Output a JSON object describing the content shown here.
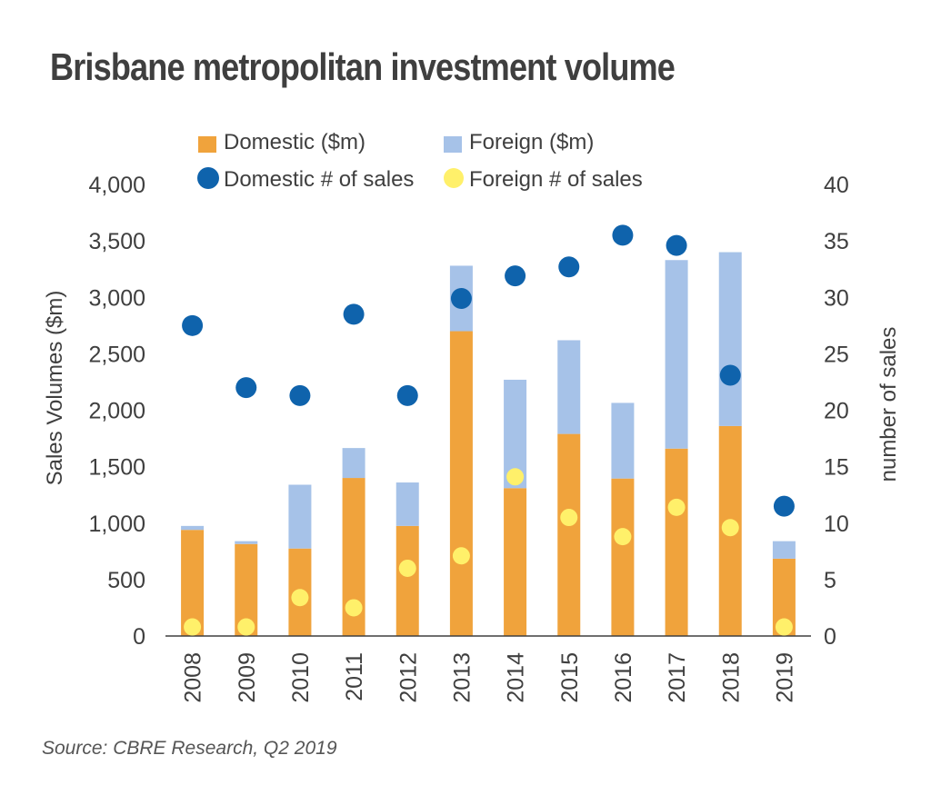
{
  "chart_data": {
    "type": "bar",
    "title": "Brisbane metropolitan investment volume",
    "source": "Source: CBRE Research, Q2 2019",
    "categories": [
      "2008",
      "2009",
      "2010",
      "2011",
      "2012",
      "2013",
      "2014",
      "2015",
      "2016",
      "2017",
      "2018",
      "2019"
    ],
    "series": [
      {
        "name": "Domestic ($m)",
        "kind": "bar",
        "axis": "left",
        "color": "#F0A33C",
        "values": [
          940,
          815,
          775,
          1400,
          975,
          2700,
          1310,
          1790,
          1395,
          1660,
          1860,
          685
        ]
      },
      {
        "name": "Foreign ($m)",
        "kind": "bar",
        "axis": "left",
        "color": "#A6C2E8",
        "values": [
          35,
          25,
          565,
          265,
          385,
          580,
          960,
          830,
          670,
          1670,
          1540,
          155
        ]
      },
      {
        "name": "Domestic # of sales",
        "kind": "scatter",
        "axis": "right",
        "color": "#0F63AC",
        "values": [
          27.5,
          22,
          21.3,
          28.5,
          21.3,
          29.9,
          31.9,
          32.7,
          35.5,
          34.6,
          23.1,
          11.5
        ]
      },
      {
        "name": "Foreign # of sales",
        "kind": "scatter",
        "axis": "right",
        "color": "#FFF06A",
        "values": [
          0.8,
          0.8,
          3.4,
          2.5,
          6,
          7.1,
          14.1,
          10.5,
          8.8,
          11.4,
          9.6,
          0.8
        ]
      }
    ],
    "ylabel": "Sales Volumes ($m)",
    "ylabel_right": "number of sales",
    "ylim": [
      0,
      4000
    ],
    "ylim_right": [
      0,
      40
    ],
    "yticks": [
      "0",
      "500",
      "1,000",
      "1,500",
      "2,000",
      "2,500",
      "3,000",
      "3,500",
      "4,000"
    ],
    "yticks_right": [
      "0",
      "5",
      "10",
      "15",
      "20",
      "25",
      "30",
      "35",
      "40"
    ],
    "grid": false,
    "stacked": true,
    "legend_position": "top"
  }
}
